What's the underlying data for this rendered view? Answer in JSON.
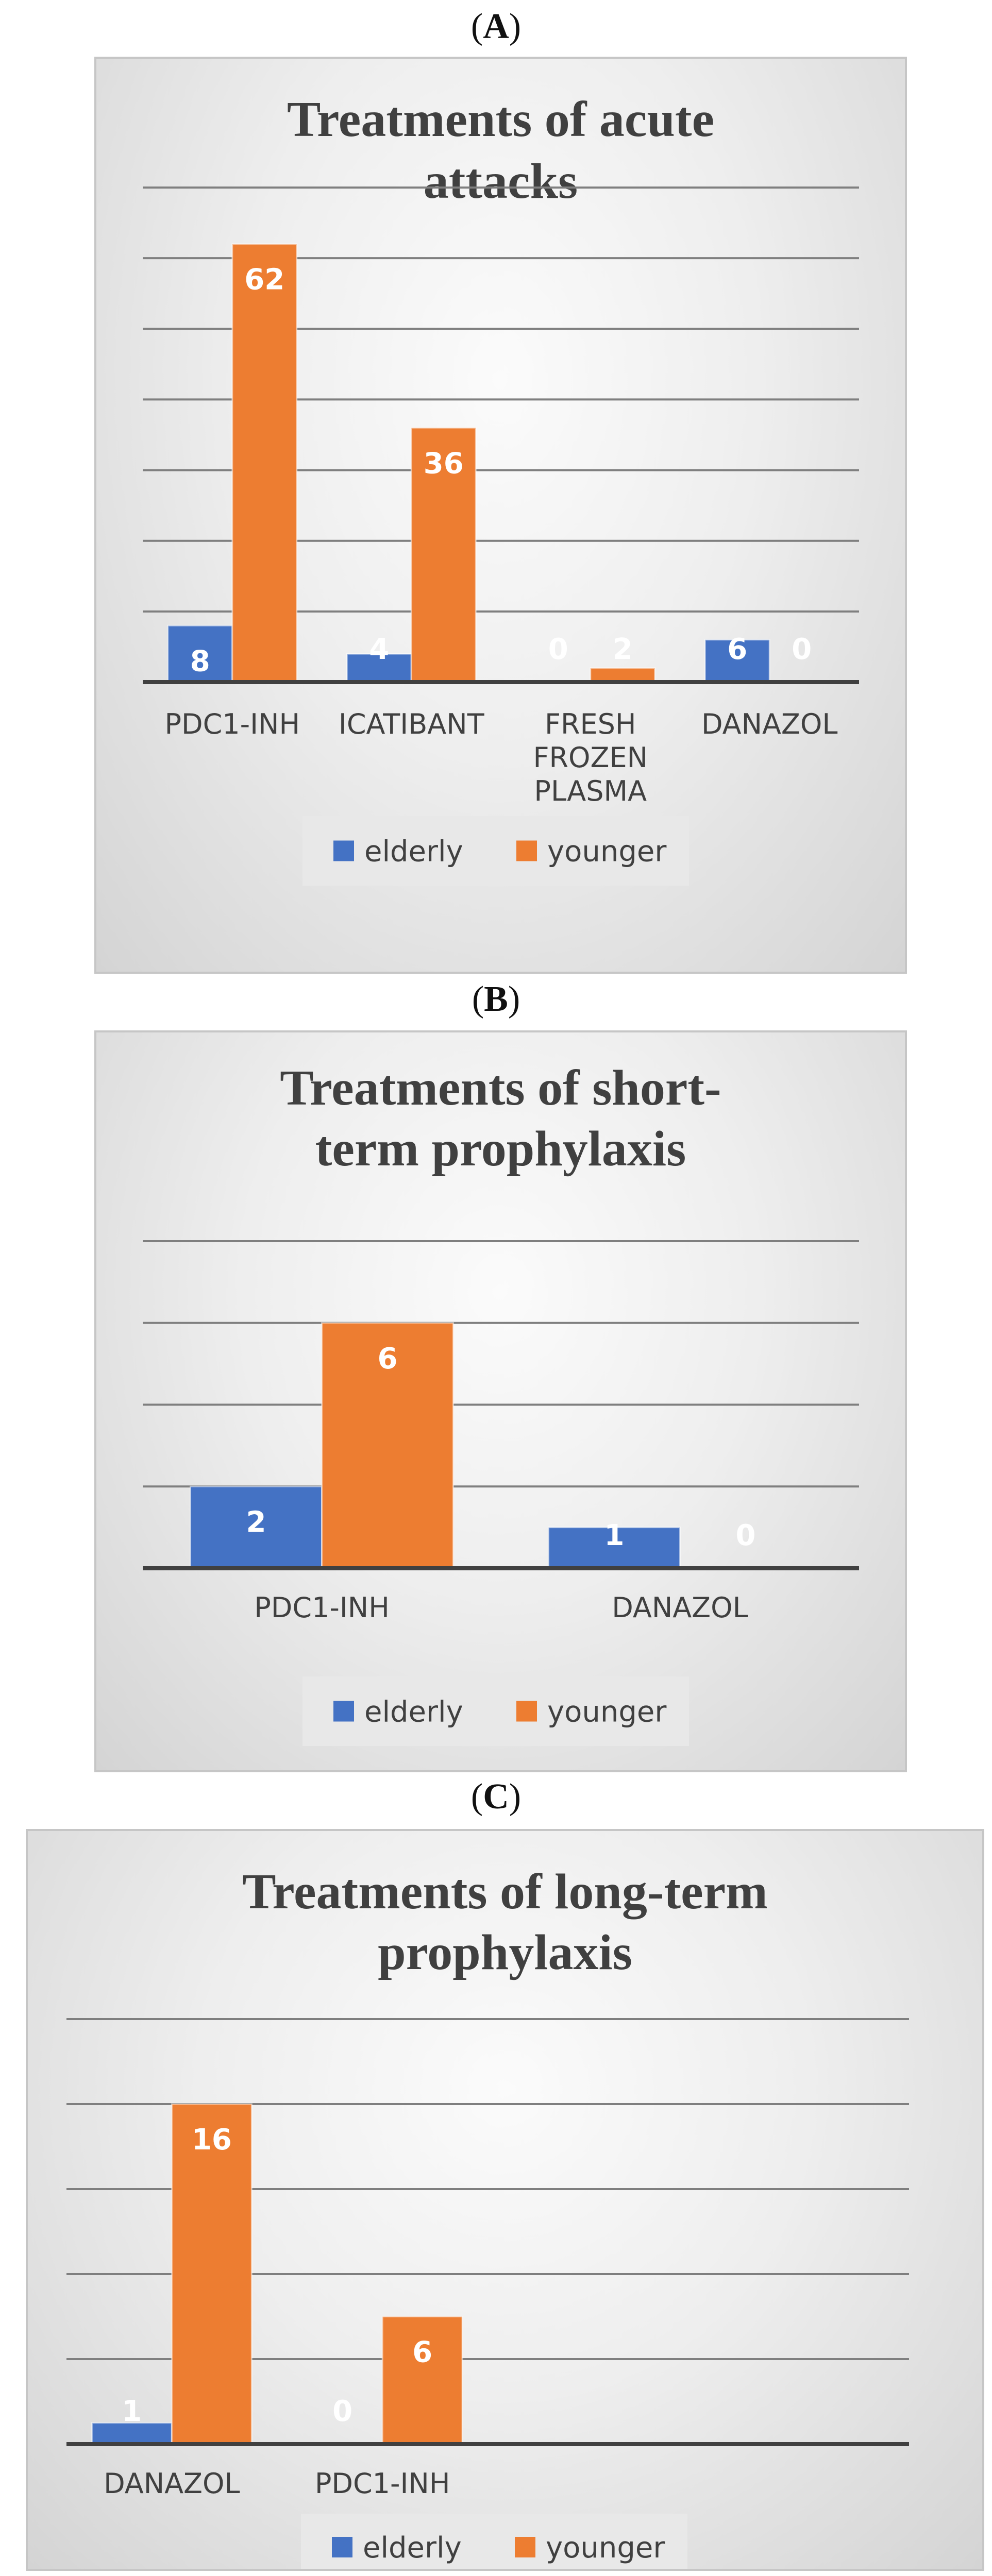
{
  "panels": [
    {
      "letter": "A"
    },
    {
      "letter": "B"
    },
    {
      "letter": "C"
    }
  ],
  "colors": {
    "elderly": "#4472c4",
    "younger": "#ed7d31",
    "grid": "#7f7f7f",
    "axis": "#404040"
  },
  "chart_data": [
    {
      "type": "bar",
      "title": [
        "Treatments of acute",
        "attacks"
      ],
      "categories": [
        [
          "PDC1-INH"
        ],
        [
          "ICATIBANT"
        ],
        [
          "FRESH",
          "FROZEN",
          "PLASMA"
        ],
        [
          "DANAZOL"
        ]
      ],
      "series": [
        {
          "name": "elderly",
          "values": [
            8,
            4,
            0,
            6
          ]
        },
        {
          "name": "younger",
          "values": [
            62,
            36,
            2,
            0
          ]
        }
      ],
      "ylim": [
        0,
        70
      ],
      "grid": true,
      "legend": "bottom"
    },
    {
      "type": "bar",
      "title": [
        "Treatments of short-",
        "term prophylaxis"
      ],
      "categories": [
        [
          "PDC1-INH"
        ],
        [
          "DANAZOL"
        ]
      ],
      "series": [
        {
          "name": "elderly",
          "values": [
            2,
            1
          ]
        },
        {
          "name": "younger",
          "values": [
            6,
            0
          ]
        }
      ],
      "ylim": [
        0,
        8
      ],
      "grid": true,
      "legend": "bottom"
    },
    {
      "type": "bar",
      "title": [
        "Treatments of long-term",
        "prophylaxis"
      ],
      "categories": [
        [
          "DANAZOL"
        ],
        [
          "PDC1-INH"
        ]
      ],
      "series": [
        {
          "name": "elderly",
          "values": [
            1,
            0
          ]
        },
        {
          "name": "younger",
          "values": [
            16,
            6
          ]
        }
      ],
      "ylim": [
        0,
        20
      ],
      "grid": true,
      "legend": "bottom"
    }
  ]
}
